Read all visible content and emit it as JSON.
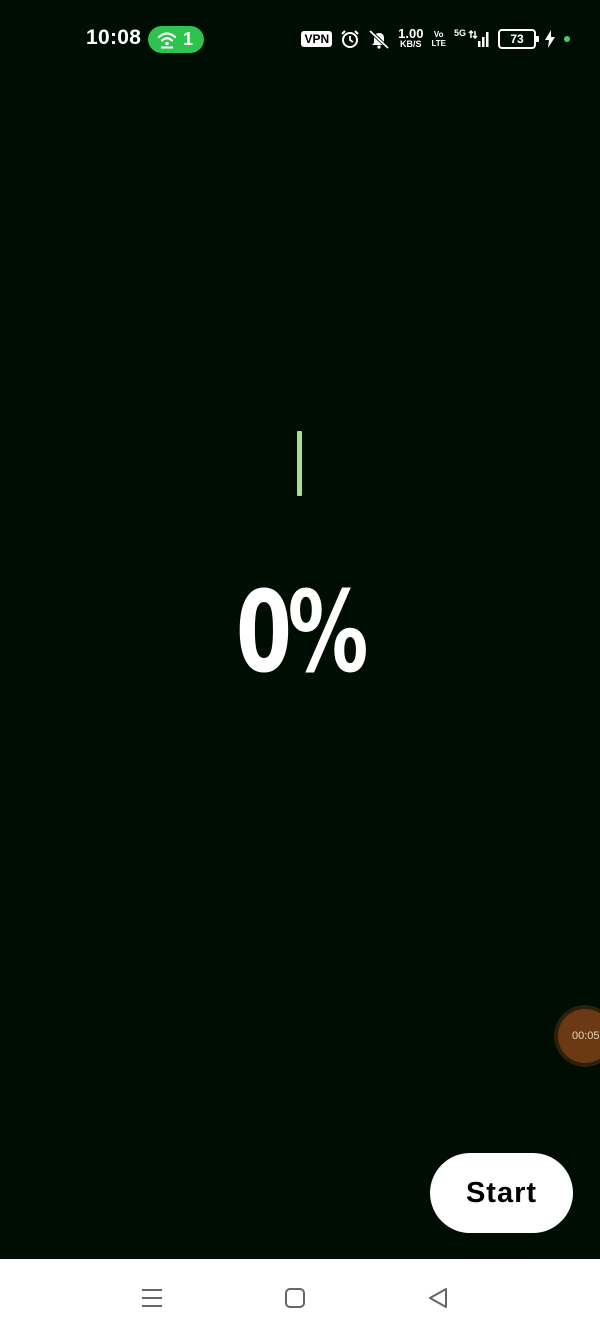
{
  "status_bar": {
    "time": "10:08",
    "hotspot_count": "1",
    "vpn_label": "VPN",
    "net_speed_value": "1.00",
    "net_speed_unit": "KB/S",
    "volte_top": "Vo",
    "volte_bottom": "LTE",
    "network_type": "5G",
    "battery_level": "73",
    "icons": [
      "hotspot-icon",
      "alarm-icon",
      "bell-muted-icon",
      "signal-icon",
      "charging-icon"
    ]
  },
  "progress": {
    "percent_label": "0%",
    "value": 0,
    "accent_color": "#a6e08a"
  },
  "recording_bubble": {
    "timer": "00:05"
  },
  "actions": {
    "start_label": "Start"
  },
  "nav": {
    "items": [
      "menu-icon",
      "home-icon",
      "back-icon"
    ]
  },
  "colors": {
    "background": "#000d02",
    "hotspot_pill": "#2ec24f",
    "button_bg": "#ffffff"
  }
}
